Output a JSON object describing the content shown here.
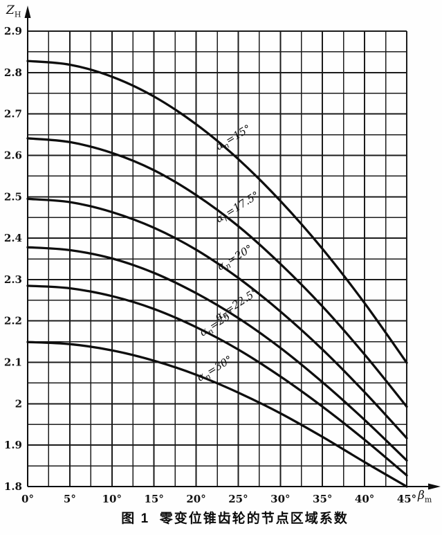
{
  "caption": "图 1  零变位锥齿轮的节点区域系数",
  "chart_data": {
    "type": "line",
    "title": "图 1  零变位锥齿轮的节点区域系数",
    "xlabel": "βm",
    "xlabel_base": "β",
    "xlabel_sub": "m",
    "ylabel": "ZH",
    "ylabel_base": "Z",
    "ylabel_sub": "H",
    "x_unit": "degrees",
    "xlim": [
      0,
      45
    ],
    "ylim": [
      1.8,
      2.9
    ],
    "x_major": 5,
    "y_major": 0.1,
    "grid": {
      "on": true,
      "x_minor": 2.5,
      "y_minor": 0.05
    },
    "legend_position": "labels-on-curves",
    "x_tick_labels": [
      "0°",
      "5°",
      "10°",
      "15°",
      "20°",
      "25°",
      "30°",
      "35°",
      "40°",
      "45°"
    ],
    "y_tick_labels": [
      "2.9",
      "2.8",
      "2.7",
      "2.6",
      "2.5",
      "2.4",
      "2.3",
      "2.2",
      "2.1",
      "2",
      "1.9",
      "1.8"
    ],
    "x": [
      0,
      5,
      10,
      15,
      20,
      25,
      30,
      35,
      40,
      45
    ],
    "series": [
      {
        "name": "αn=15°",
        "alpha_n": 15,
        "label_parts": {
          "base": "α",
          "sub": "n",
          "rest": "=15°"
        },
        "label_at": {
          "x": 24.6,
          "y": 2.636,
          "angle": -31
        },
        "values": [
          2.828,
          2.819,
          2.79,
          2.742,
          2.675,
          2.591,
          2.49,
          2.374,
          2.243,
          2.099
        ]
      },
      {
        "name": "αn=17.5°",
        "alpha_n": 17.5,
        "label_parts": {
          "base": "α",
          "sub": "n",
          "rest": "=17.5°"
        },
        "label_at": {
          "x": 25.1,
          "y": 2.468,
          "angle": -32
        },
        "values": [
          2.641,
          2.632,
          2.606,
          2.564,
          2.504,
          2.429,
          2.338,
          2.235,
          2.119,
          1.993
        ]
      },
      {
        "name": "αn=20°",
        "alpha_n": 20,
        "label_parts": {
          "base": "α",
          "sub": "n",
          "rest": "=20°"
        },
        "label_at": {
          "x": 24.8,
          "y": 2.346,
          "angle": -31
        },
        "values": [
          2.495,
          2.487,
          2.463,
          2.425,
          2.372,
          2.304,
          2.223,
          2.131,
          2.028,
          1.917
        ]
      },
      {
        "name": "αn=22.5°",
        "alpha_n": 22.5,
        "label_parts": {
          "base": "α",
          "sub": "n",
          "rest": "=22.5°"
        },
        "label_at": {
          "x": 25.0,
          "y": 2.233,
          "angle": -33
        },
        "values": [
          2.378,
          2.371,
          2.351,
          2.316,
          2.267,
          2.207,
          2.135,
          2.052,
          1.961,
          1.863
        ]
      },
      {
        "name": "αn=25°",
        "alpha_n": 25,
        "label_parts": {
          "base": "α",
          "sub": "n",
          "rest": "=25°"
        },
        "label_at": {
          "x": 22.7,
          "y": 2.188,
          "angle": -33
        },
        "values": [
          2.285,
          2.279,
          2.26,
          2.229,
          2.185,
          2.131,
          2.066,
          1.993,
          1.913,
          1.827
        ]
      },
      {
        "name": "αn=30°",
        "alpha_n": 30,
        "label_parts": {
          "base": "α",
          "sub": "n",
          "rest": "=30°"
        },
        "label_at": {
          "x": 22.4,
          "y": 2.078,
          "angle": -31
        },
        "values": [
          2.149,
          2.144,
          2.129,
          2.104,
          2.07,
          2.027,
          1.977,
          1.92,
          1.859,
          1.8
        ]
      }
    ]
  }
}
